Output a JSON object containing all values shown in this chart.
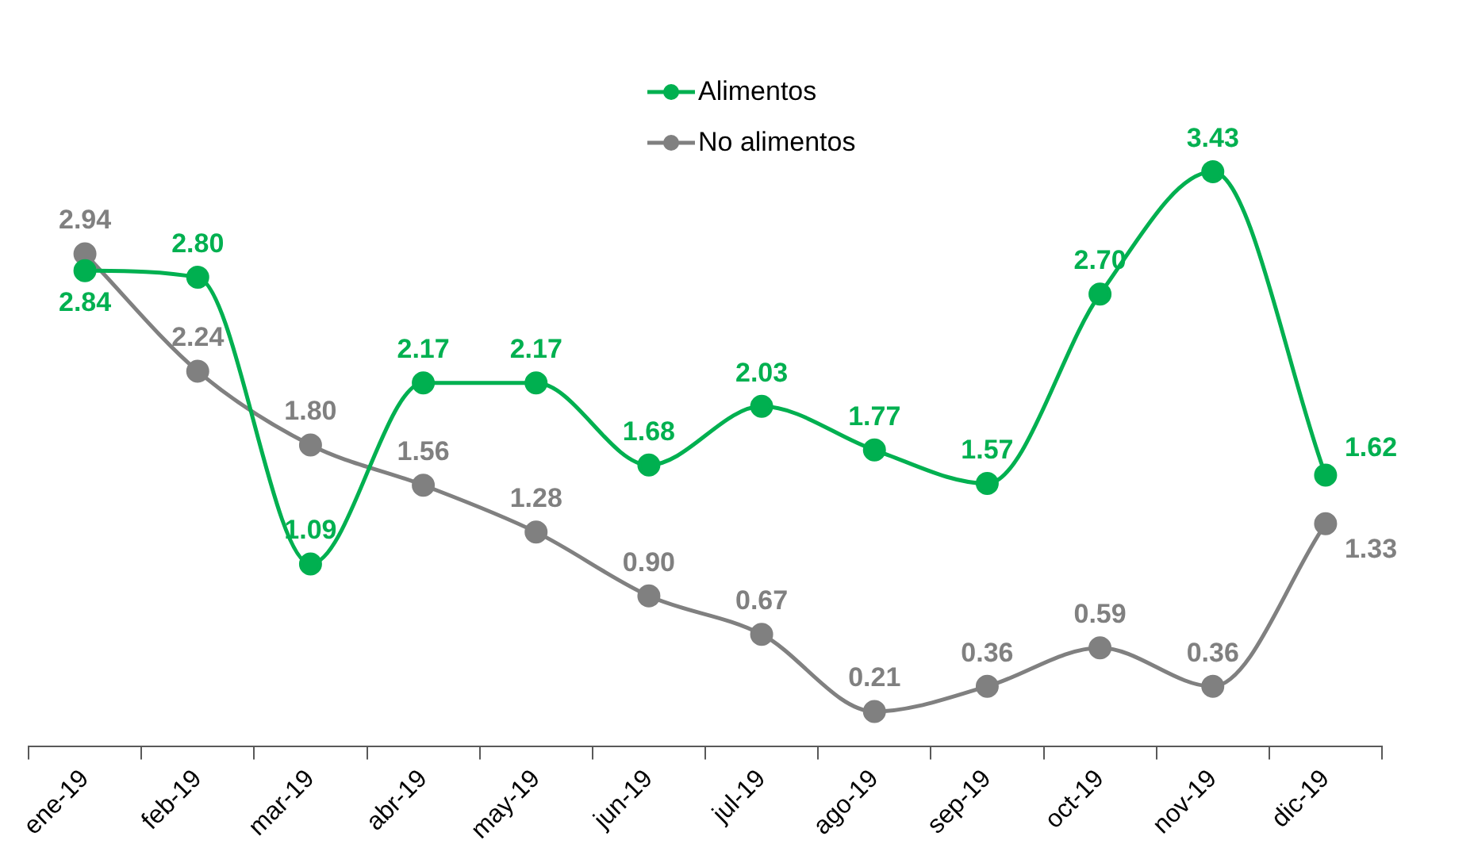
{
  "chart_data": {
    "type": "line",
    "categories": [
      "ene-19",
      "feb-19",
      "mar-19",
      "abr-19",
      "may-19",
      "jun-19",
      "jul-19",
      "ago-19",
      "sep-19",
      "oct-19",
      "nov-19",
      "dic-19"
    ],
    "series": [
      {
        "name": "Alimentos",
        "color": "#00b050",
        "values": [
          2.84,
          2.8,
          1.09,
          2.17,
          2.17,
          1.68,
          2.03,
          1.77,
          1.57,
          2.7,
          3.43,
          1.62
        ],
        "value_labels": [
          "2.84",
          "2.80",
          "1.09",
          "2.17",
          "2.17",
          "1.68",
          "2.03",
          "1.77",
          "1.57",
          "2.70",
          "3.43",
          "1.62"
        ]
      },
      {
        "name": "No alimentos",
        "color": "#808080",
        "values": [
          2.94,
          2.24,
          1.8,
          1.56,
          1.28,
          0.9,
          0.67,
          0.21,
          0.36,
          0.59,
          0.36,
          1.33
        ],
        "value_labels": [
          "2.94",
          "2.24",
          "1.80",
          "1.56",
          "1.28",
          "0.90",
          "0.67",
          "0.21",
          "0.36",
          "0.59",
          "0.36",
          "1.33"
        ]
      }
    ],
    "legend": "top",
    "marker": "circle",
    "line_style": "solid",
    "grid": false
  }
}
